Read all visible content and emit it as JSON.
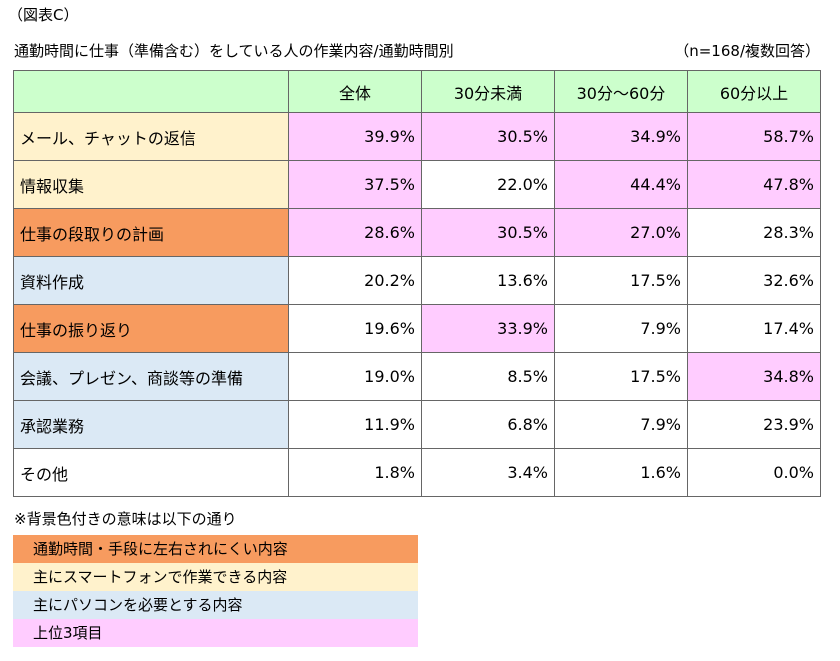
{
  "figure_label": "（図表C）",
  "title": "通勤時間に仕事（準備含む）をしている人の作業内容/通勤時間別",
  "note": "（n=168/複数回答）",
  "table": {
    "header_color": "#ccffcc",
    "header": [
      "全体",
      "30分未満",
      "30分～60分",
      "60分以上"
    ],
    "rows": [
      {
        "label": "メール、チャットの返信",
        "label_color": "#fff2cc",
        "cells": [
          "39.9%",
          "30.5%",
          "34.9%",
          "58.7%"
        ],
        "cell_colors": [
          "#ffccff",
          "#ffccff",
          "#ffccff",
          "#ffccff"
        ]
      },
      {
        "label": "情報収集",
        "label_color": "#fff2cc",
        "cells": [
          "37.5%",
          "22.0%",
          "44.4%",
          "47.8%"
        ],
        "cell_colors": [
          "#ffccff",
          "#ffffff",
          "#ffccff",
          "#ffccff"
        ]
      },
      {
        "label": "仕事の段取りの計画",
        "label_color": "#f79b5f",
        "cells": [
          "28.6%",
          "30.5%",
          "27.0%",
          "28.3%"
        ],
        "cell_colors": [
          "#ffccff",
          "#ffccff",
          "#ffccff",
          "#ffffff"
        ]
      },
      {
        "label": "資料作成",
        "label_color": "#dbe9f5",
        "cells": [
          "20.2%",
          "13.6%",
          "17.5%",
          "32.6%"
        ],
        "cell_colors": [
          "#ffffff",
          "#ffffff",
          "#ffffff",
          "#ffffff"
        ]
      },
      {
        "label": "仕事の振り返り",
        "label_color": "#f79b5f",
        "cells": [
          "19.6%",
          "33.9%",
          "7.9%",
          "17.4%"
        ],
        "cell_colors": [
          "#ffffff",
          "#ffccff",
          "#ffffff",
          "#ffffff"
        ]
      },
      {
        "label": "会議、プレゼン、商談等の準備",
        "label_color": "#dbe9f5",
        "cells": [
          "19.0%",
          "8.5%",
          "17.5%",
          "34.8%"
        ],
        "cell_colors": [
          "#ffffff",
          "#ffffff",
          "#ffffff",
          "#ffccff"
        ]
      },
      {
        "label": "承認業務",
        "label_color": "#dbe9f5",
        "cells": [
          "11.9%",
          "6.8%",
          "7.9%",
          "23.9%"
        ],
        "cell_colors": [
          "#ffffff",
          "#ffffff",
          "#ffffff",
          "#ffffff"
        ]
      },
      {
        "label": "その他",
        "label_color": "#ffffff",
        "cells": [
          "1.8%",
          "3.4%",
          "1.6%",
          "0.0%"
        ],
        "cell_colors": [
          "#ffffff",
          "#ffffff",
          "#ffffff",
          "#ffffff"
        ]
      }
    ]
  },
  "legend": {
    "title": "※背景色付きの意味は以下の通り",
    "items": [
      {
        "label": "通勤時間・手段に左右されにくい内容",
        "color": "#f79b5f"
      },
      {
        "label": "主にスマートフォンで作業できる内容",
        "color": "#fff2cc"
      },
      {
        "label": "主にパソコンを必要とする内容",
        "color": "#dbe9f5"
      },
      {
        "label": "上位3項目",
        "color": "#ffccff"
      }
    ]
  }
}
